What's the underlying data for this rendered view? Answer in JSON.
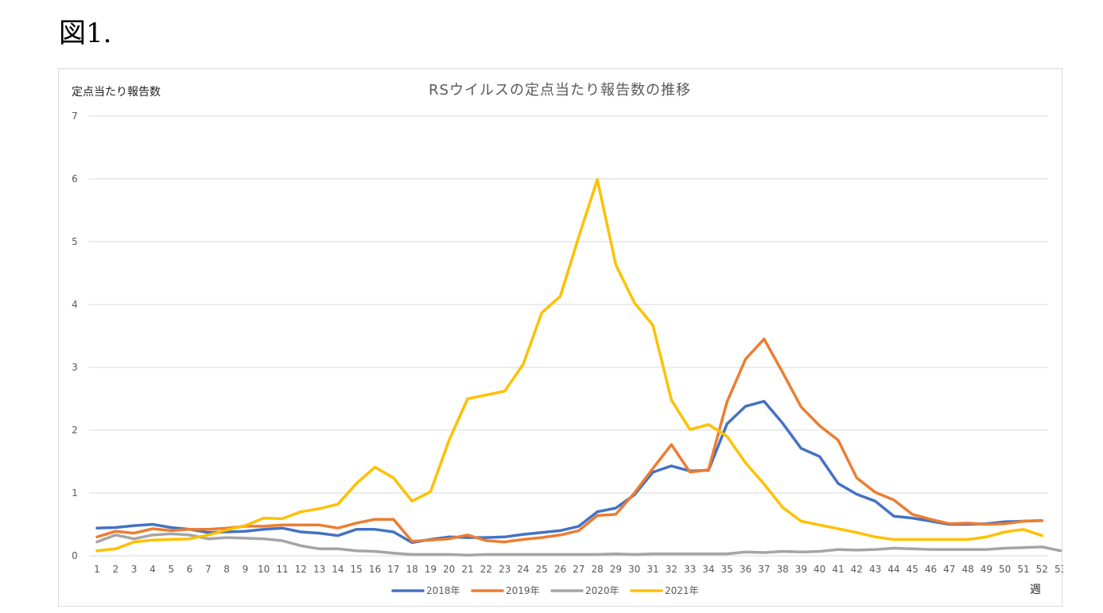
{
  "figure_label": "図1.",
  "chart_data": {
    "type": "line",
    "title": "RSウイルスの定点当たり報告数の推移",
    "ylabel": "定点当たり報告数",
    "xlabel": "週",
    "ylim": [
      0,
      7
    ],
    "yticks": [
      0,
      1,
      2,
      3,
      4,
      5,
      6,
      7
    ],
    "grid": true,
    "legend_position": "bottom",
    "x": [
      1,
      2,
      3,
      4,
      5,
      6,
      7,
      8,
      9,
      10,
      11,
      12,
      13,
      14,
      15,
      16,
      17,
      18,
      19,
      20,
      21,
      22,
      23,
      24,
      25,
      26,
      27,
      28,
      29,
      30,
      31,
      32,
      33,
      34,
      35,
      36,
      37,
      38,
      39,
      40,
      41,
      42,
      43,
      44,
      45,
      46,
      47,
      48,
      49,
      50,
      51,
      52,
      53
    ],
    "series": [
      {
        "name": "2018年",
        "color": "#4472C4",
        "values": [
          0.44,
          0.45,
          0.48,
          0.5,
          0.45,
          0.42,
          0.37,
          0.38,
          0.39,
          0.42,
          0.44,
          0.38,
          0.36,
          0.32,
          0.42,
          0.42,
          0.38,
          0.21,
          0.26,
          0.3,
          0.29,
          0.29,
          0.3,
          0.34,
          0.37,
          0.4,
          0.47,
          0.7,
          0.76,
          0.97,
          1.33,
          1.43,
          1.35,
          1.36,
          2.1,
          2.38,
          2.46,
          2.11,
          1.71,
          1.58,
          1.15,
          0.98,
          0.87,
          0.63,
          0.6,
          0.55,
          0.5,
          0.5,
          0.51,
          0.54,
          0.55,
          0.56,
          null
        ]
      },
      {
        "name": "2019年",
        "color": "#ED7D31",
        "values": [
          0.3,
          0.39,
          0.36,
          0.43,
          0.4,
          0.42,
          0.42,
          0.44,
          0.47,
          0.47,
          0.49,
          0.49,
          0.49,
          0.44,
          0.52,
          0.58,
          0.58,
          0.23,
          0.25,
          0.27,
          0.33,
          0.24,
          0.22,
          0.26,
          0.29,
          0.33,
          0.4,
          0.64,
          0.66,
          1.0,
          1.39,
          1.77,
          1.33,
          1.37,
          2.45,
          3.13,
          3.45,
          2.92,
          2.37,
          2.07,
          1.84,
          1.24,
          1.01,
          0.89,
          0.66,
          0.58,
          0.51,
          0.52,
          0.5,
          0.51,
          0.55,
          0.56,
          null
        ]
      },
      {
        "name": "2020年",
        "color": "#A5A5A5",
        "values": [
          0.22,
          0.33,
          0.27,
          0.33,
          0.35,
          0.33,
          0.27,
          0.29,
          0.28,
          0.27,
          0.24,
          0.16,
          0.11,
          0.11,
          0.08,
          0.07,
          0.04,
          0.02,
          0.02,
          0.02,
          0.01,
          0.02,
          0.02,
          0.02,
          0.02,
          0.02,
          0.02,
          0.02,
          0.03,
          0.02,
          0.03,
          0.03,
          0.03,
          0.03,
          0.03,
          0.06,
          0.05,
          0.07,
          0.06,
          0.07,
          0.1,
          0.09,
          0.1,
          0.12,
          0.11,
          0.1,
          0.1,
          0.1,
          0.1,
          0.12,
          0.13,
          0.14,
          0.08
        ]
      },
      {
        "name": "2021年",
        "color": "#FFC000",
        "values": [
          0.08,
          0.11,
          0.22,
          0.25,
          0.26,
          0.27,
          0.33,
          0.41,
          0.48,
          0.6,
          0.59,
          0.7,
          0.75,
          0.82,
          1.15,
          1.41,
          1.24,
          0.87,
          1.02,
          1.84,
          2.5,
          2.56,
          2.62,
          3.05,
          3.87,
          4.13,
          5.08,
          5.99,
          4.63,
          4.03,
          3.67,
          2.48,
          2.01,
          2.09,
          1.9,
          1.48,
          1.14,
          0.77,
          0.55,
          0.49,
          0.43,
          0.37,
          0.3,
          0.26,
          0.26,
          0.26,
          0.26,
          0.26,
          0.3,
          0.38,
          0.42,
          0.32,
          null
        ]
      }
    ]
  }
}
